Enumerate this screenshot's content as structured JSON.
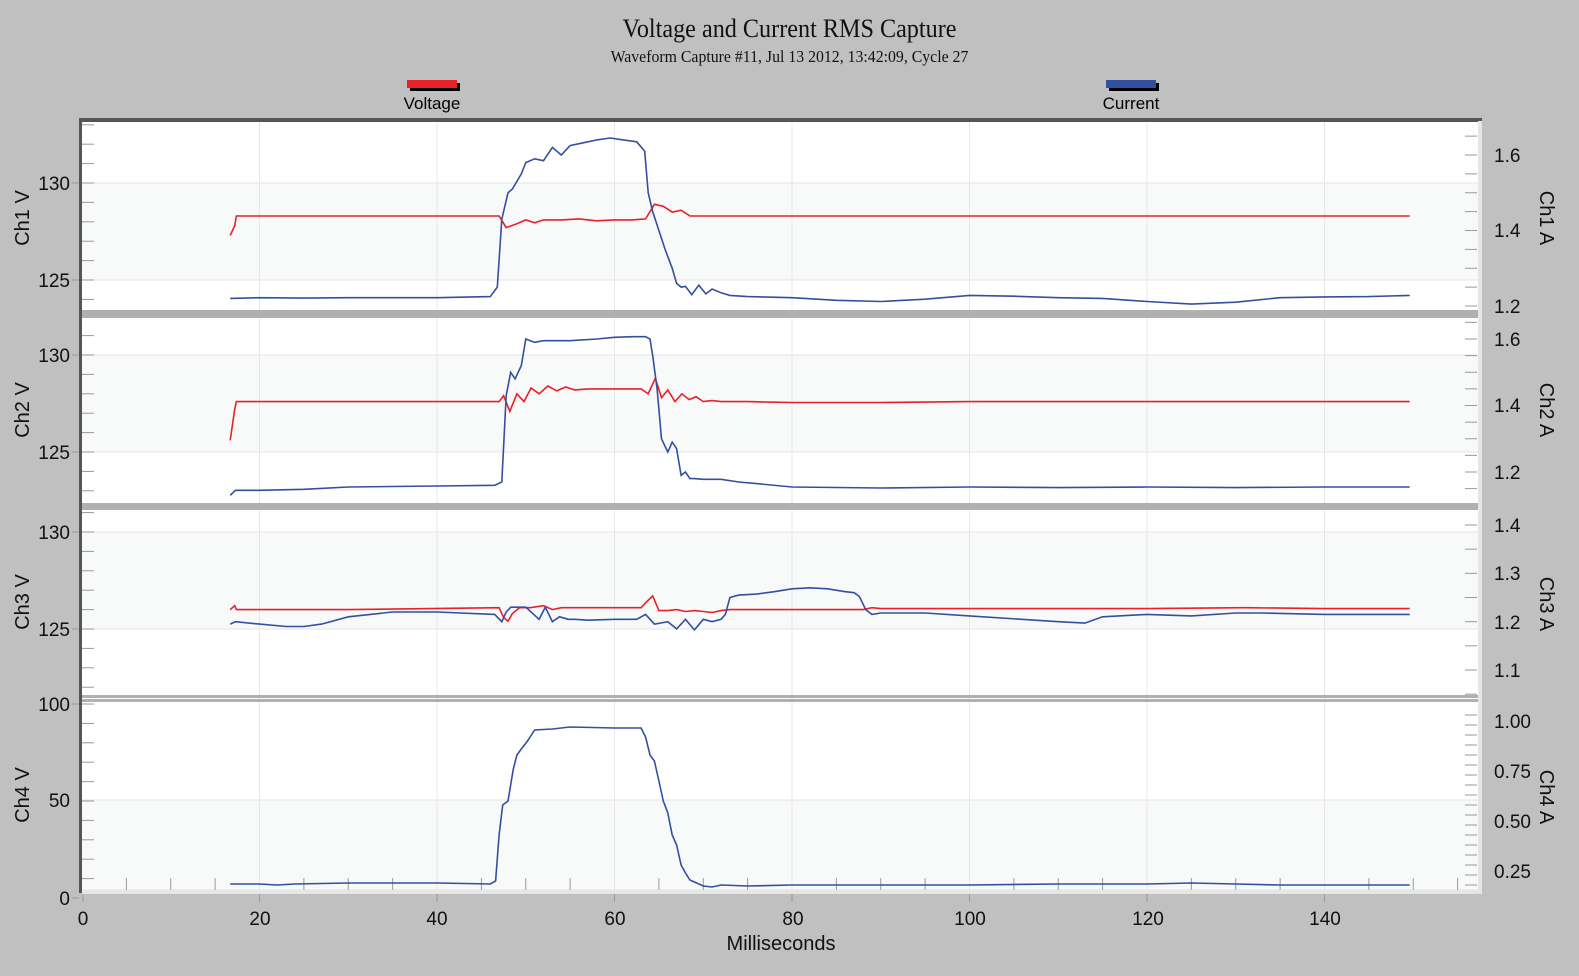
{
  "header": {
    "title": "Voltage and Current RMS Capture",
    "subtitle": "Waveform Capture #11, Jul 13 2012, 13:42:09,  Cycle 27"
  },
  "legend": [
    {
      "label": "Voltage",
      "color": "#e8202a"
    },
    {
      "label": "Current",
      "color": "#3350a0"
    }
  ],
  "x_axis": {
    "label": "Milliseconds",
    "ticks": [
      "0",
      "20",
      "40",
      "60",
      "80",
      "100",
      "120",
      "140"
    ]
  },
  "chart_data": {
    "type": "line",
    "title": "Voltage and Current RMS Capture",
    "subtitle": "Waveform Capture #11, Jul 13 2012, 13:42:09,  Cycle 27",
    "xlabel": "Milliseconds",
    "xlim": [
      0,
      157
    ],
    "x_ticks": [
      0,
      20,
      40,
      60,
      80,
      100,
      120,
      140
    ],
    "legend": [
      "Voltage",
      "Current"
    ],
    "legend_position": "top",
    "grid": true,
    "panels": [
      {
        "name": "Ch1",
        "ylabel_left": "Ch1 V",
        "ylabel_right": "Ch1 A",
        "left_ticks": [
          125,
          130
        ],
        "right_ticks": [
          1.2,
          1.4,
          1.6
        ],
        "series": [
          {
            "name": "Voltage",
            "axis": "left",
            "color": "#e8202a",
            "x": [
              16.7,
              17.2,
              17.4,
              47,
              47.8,
              49,
              50,
              51,
              52,
              54,
              56,
              58,
              60,
              62,
              63.5,
              64.5,
              65.5,
              66.5,
              67.5,
              68.5,
              70,
              72,
              76,
              80,
              82,
              85,
              90,
              100,
              110,
              120,
              130,
              140,
              149.6
            ],
            "y": [
              127.3,
              127.8,
              128.3,
              128.3,
              127.7,
              127.9,
              128.1,
              127.95,
              128.1,
              128.1,
              128.15,
              128.05,
              128.1,
              128.1,
              128.15,
              128.9,
              128.8,
              128.5,
              128.6,
              128.3,
              128.3,
              128.3,
              128.3,
              128.3,
              128.3,
              128.3,
              128.3,
              128.3,
              128.3,
              128.3,
              128.3,
              128.3,
              128.3
            ]
          },
          {
            "name": "Current",
            "axis": "right",
            "color": "#3350a0",
            "x": [
              16.7,
              20,
              25,
              30,
              40,
              46,
              46.8,
              47.3,
              48,
              48.5,
              49.5,
              50,
              51,
              52,
              53,
              54,
              55,
              56,
              57,
              58,
              59.5,
              61,
              62.5,
              63.4,
              63.8,
              64.3,
              65,
              65.7,
              66.5,
              67,
              67.5,
              68,
              68.7,
              69.5,
              70.3,
              71,
              72,
              73,
              75,
              80,
              85,
              90,
              95,
              100,
              105,
              110,
              115,
              120,
              125,
              130,
              135,
              140,
              145,
              149.6
            ],
            "y": [
              1.22,
              1.222,
              1.221,
              1.222,
              1.222,
              1.225,
              1.25,
              1.43,
              1.5,
              1.51,
              1.55,
              1.58,
              1.59,
              1.585,
              1.62,
              1.6,
              1.625,
              1.63,
              1.635,
              1.64,
              1.645,
              1.64,
              1.635,
              1.61,
              1.5,
              1.45,
              1.4,
              1.35,
              1.3,
              1.26,
              1.25,
              1.252,
              1.23,
              1.255,
              1.232,
              1.245,
              1.235,
              1.228,
              1.225,
              1.222,
              1.215,
              1.212,
              1.218,
              1.228,
              1.226,
              1.222,
              1.22,
              1.212,
              1.205,
              1.21,
              1.222,
              1.224,
              1.225,
              1.228
            ]
          }
        ]
      },
      {
        "name": "Ch2",
        "ylabel_left": "Ch2 V",
        "ylabel_right": "Ch2 A",
        "left_ticks": [
          125,
          130
        ],
        "right_ticks": [
          1.2,
          1.4,
          1.6
        ],
        "series": [
          {
            "name": "Voltage",
            "axis": "left",
            "color": "#e8202a",
            "x": [
              16.7,
              17.2,
              17.4,
              47,
              47.5,
              48.2,
              49,
              49.8,
              50.6,
              51.5,
              52.5,
              53.5,
              54.5,
              55.5,
              57,
              60,
              63,
              63.8,
              64.6,
              65.3,
              66,
              66.8,
              67.6,
              68.4,
              69.2,
              70,
              71,
              72,
              75,
              80,
              90,
              100,
              120,
              140,
              149.6
            ],
            "y": [
              125.6,
              127.2,
              127.6,
              127.6,
              127.9,
              127.1,
              128.0,
              127.6,
              128.3,
              128.0,
              128.4,
              128.15,
              128.35,
              128.2,
              128.25,
              128.25,
              128.25,
              128.0,
              128.8,
              127.8,
              128.2,
              127.6,
              128.0,
              127.7,
              127.85,
              127.6,
              127.65,
              127.6,
              127.6,
              127.55,
              127.55,
              127.6,
              127.6,
              127.6,
              127.6
            ]
          },
          {
            "name": "Current",
            "axis": "right",
            "color": "#3350a0",
            "x": [
              16.7,
              17.3,
              20,
              25,
              30,
              40,
              46.5,
              47.3,
              47.8,
              48.3,
              48.8,
              49.5,
              50,
              50.5,
              51,
              52,
              53,
              55,
              58,
              60,
              62,
              63.5,
              64,
              64.3,
              64.8,
              65.3,
              66,
              66.5,
              67,
              67.5,
              68,
              68.5,
              69,
              70,
              72,
              74,
              76,
              80,
              90,
              100,
              110,
              120,
              130,
              140,
              149.6
            ],
            "y": [
              1.13,
              1.145,
              1.145,
              1.148,
              1.155,
              1.158,
              1.16,
              1.17,
              1.43,
              1.5,
              1.48,
              1.52,
              1.6,
              1.595,
              1.59,
              1.595,
              1.595,
              1.595,
              1.6,
              1.605,
              1.607,
              1.607,
              1.6,
              1.55,
              1.45,
              1.3,
              1.26,
              1.29,
              1.27,
              1.19,
              1.2,
              1.18,
              1.18,
              1.178,
              1.178,
              1.17,
              1.165,
              1.155,
              1.152,
              1.155,
              1.153,
              1.155,
              1.153,
              1.155,
              1.155
            ]
          }
        ]
      },
      {
        "name": "Ch3",
        "ylabel_left": "Ch3 V",
        "ylabel_right": "Ch3 A",
        "left_ticks": [
          125,
          130
        ],
        "right_ticks": [
          1.1,
          1.2,
          1.3,
          1.4
        ],
        "series": [
          {
            "name": "Voltage",
            "axis": "left",
            "color": "#e8202a",
            "x": [
              16.7,
              17.2,
              17.4,
              30,
              47,
              47.5,
              48,
              48.5,
              49.3,
              50.5,
              52,
              53,
              54,
              56,
              60,
              63,
              63.6,
              64.3,
              65,
              66,
              67,
              68,
              69,
              70,
              71,
              72,
              73,
              74,
              80,
              88,
              89,
              90,
              100,
              120,
              131,
              140,
              149.6
            ],
            "y": [
              126.0,
              126.2,
              126.0,
              126.0,
              126.1,
              125.6,
              125.4,
              125.8,
              126.1,
              126.1,
              126.2,
              126.0,
              126.1,
              126.1,
              126.1,
              126.1,
              126.4,
              126.7,
              125.95,
              125.95,
              126.0,
              125.9,
              125.95,
              125.9,
              125.85,
              125.95,
              126.0,
              126.0,
              126.0,
              126.0,
              126.1,
              126.05,
              126.05,
              126.05,
              126.1,
              126.05,
              126.05
            ]
          },
          {
            "name": "Current",
            "axis": "right",
            "color": "#3350a0",
            "x": [
              16.7,
              17.3,
              20,
              23,
              25,
              27,
              30,
              35,
              40,
              46.5,
              47.3,
              47.8,
              48.3,
              50,
              51.5,
              52.2,
              53,
              53.8,
              54.8,
              55.5,
              57,
              60,
              62.5,
              63.5,
              64.5,
              66,
              67,
              68,
              69,
              70,
              71,
              72,
              72.5,
              73,
              74,
              76,
              78,
              80,
              82,
              84,
              86,
              87,
              87.6,
              88.3,
              89,
              90,
              95,
              100,
              110,
              113,
              115,
              120,
              125,
              130,
              133,
              140,
              149.6
            ],
            "y": [
              1.195,
              1.2,
              1.195,
              1.19,
              1.19,
              1.195,
              1.21,
              1.22,
              1.22,
              1.215,
              1.2,
              1.22,
              1.23,
              1.23,
              1.205,
              1.23,
              1.2,
              1.21,
              1.205,
              1.205,
              1.203,
              1.205,
              1.205,
              1.215,
              1.195,
              1.2,
              1.185,
              1.205,
              1.183,
              1.205,
              1.2,
              1.205,
              1.215,
              1.25,
              1.255,
              1.257,
              1.262,
              1.268,
              1.27,
              1.268,
              1.262,
              1.26,
              1.252,
              1.225,
              1.215,
              1.218,
              1.218,
              1.212,
              1.2,
              1.197,
              1.21,
              1.215,
              1.212,
              1.218,
              1.218,
              1.215,
              1.215
            ]
          }
        ]
      },
      {
        "name": "Ch4",
        "ylabel_left": "Ch4 V",
        "ylabel_right": "Ch4 A",
        "left_ticks": [
          0,
          50,
          100
        ],
        "right_ticks": [
          0.25,
          0.5,
          0.75,
          1.0
        ],
        "series": [
          {
            "name": "Current",
            "axis": "right",
            "color": "#3350a0",
            "x": [
              16.7,
              20,
              22,
              24,
              30,
              40,
              46,
              46.6,
              47,
              47.4,
              48,
              48.6,
              49,
              49.5,
              50.2,
              51,
              53,
              55,
              60,
              63,
              63.5,
              64,
              64.5,
              65,
              65.5,
              66,
              66.5,
              67,
              67.5,
              68,
              68.5,
              69,
              70,
              71,
              72,
              75,
              80,
              90,
              100,
              110,
              120,
              125,
              130,
              135,
              140,
              149.6
            ],
            "y": [
              0.205,
              0.205,
              0.2,
              0.205,
              0.21,
              0.21,
              0.205,
              0.22,
              0.45,
              0.6,
              0.62,
              0.78,
              0.85,
              0.88,
              0.92,
              0.975,
              0.98,
              0.99,
              0.985,
              0.985,
              0.94,
              0.85,
              0.82,
              0.72,
              0.62,
              0.56,
              0.45,
              0.4,
              0.3,
              0.26,
              0.225,
              0.215,
              0.195,
              0.19,
              0.2,
              0.195,
              0.2,
              0.2,
              0.2,
              0.205,
              0.205,
              0.21,
              0.205,
              0.2,
              0.2,
              0.2
            ]
          }
        ]
      }
    ]
  },
  "panels": [
    {
      "ylabel_left": "Ch1 V",
      "ylabel_right": "Ch1 A",
      "left_tick_labels": [
        "130",
        "125"
      ],
      "right_tick_labels": [
        "1.6",
        "1.4",
        "1.2"
      ]
    },
    {
      "ylabel_left": "Ch2 V",
      "ylabel_right": "Ch2 A",
      "left_tick_labels": [
        "130",
        "125"
      ],
      "right_tick_labels": [
        "1.6",
        "1.4",
        "1.2"
      ]
    },
    {
      "ylabel_left": "Ch3 V",
      "ylabel_right": "Ch3 A",
      "left_tick_labels": [
        "130",
        "125"
      ],
      "right_tick_labels": [
        "1.4",
        "1.3",
        "1.2",
        "1.1"
      ]
    },
    {
      "ylabel_left": "Ch4 V",
      "ylabel_right": "Ch4 A",
      "left_tick_labels": [
        "100",
        "50",
        "0"
      ],
      "right_tick_labels": [
        "1.00",
        "0.75",
        "0.50",
        "0.25"
      ]
    }
  ]
}
